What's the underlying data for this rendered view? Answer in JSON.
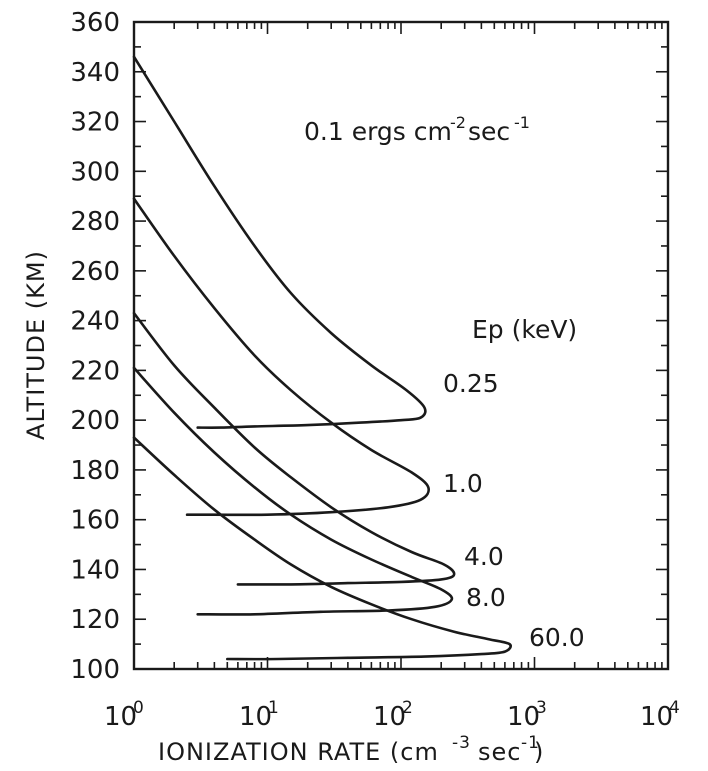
{
  "chart_data": {
    "type": "line",
    "annotation": "0.1 ergs cm-2 sec-1",
    "legend_title": "Ep (keV)",
    "xlabel": "IONIZATION RATE (cm-3 sec-1)",
    "ylabel": "ALTITUDE (KM)",
    "x_scale": "log",
    "xlim": [
      1,
      10000
    ],
    "ylim": [
      100,
      360
    ],
    "x_ticks": [
      "10^0",
      "10^1",
      "10^2",
      "10^3",
      "10^4"
    ],
    "y_ticks": [
      "100",
      "120",
      "140",
      "160",
      "180",
      "200",
      "220",
      "240",
      "260",
      "280",
      "300",
      "320",
      "340",
      "360"
    ],
    "series": [
      {
        "name": "0.25",
        "x": [
          1.0,
          2.0,
          4.0,
          8.0,
          15.0,
          30.0,
          60.0,
          110.0,
          150.0,
          140.0,
          100.0,
          50.0,
          20.0,
          8.0,
          4.5,
          3.0
        ],
        "y": [
          346,
          320,
          294,
          270,
          251,
          235,
          222,
          212,
          205,
          201,
          200,
          199,
          198,
          197.5,
          197,
          197
        ]
      },
      {
        "name": "1.0",
        "x": [
          1.0,
          2.0,
          4.0,
          8.0,
          15.0,
          30.0,
          60.0,
          120.0,
          160.0,
          140.0,
          80.0,
          30.0,
          10.0,
          4.0,
          2.5
        ],
        "y": [
          289,
          266,
          245,
          226,
          212,
          199,
          188,
          179,
          173,
          168,
          165,
          163,
          162,
          162,
          162
        ]
      },
      {
        "name": "4.0",
        "x": [
          1.0,
          2.0,
          4.0,
          8.0,
          15.0,
          30.0,
          60.0,
          120.0,
          210.0,
          250.0,
          200.0,
          100.0,
          40.0,
          15.0,
          6.0
        ],
        "y": [
          243,
          222,
          205,
          189,
          177,
          165,
          155,
          147,
          142,
          138,
          136,
          135,
          134.5,
          134,
          134
        ]
      },
      {
        "name": "8.0",
        "x": [
          1.0,
          2.0,
          4.0,
          8.0,
          15.0,
          30.0,
          60.0,
          120.0,
          200.0,
          240.0,
          180.0,
          80.0,
          25.0,
          8.0,
          3.0
        ],
        "y": [
          221,
          203,
          187,
          173,
          162,
          152,
          144,
          137,
          132,
          128,
          125,
          123.5,
          123,
          122,
          122
        ]
      },
      {
        "name": "60.0",
        "x": [
          1.0,
          2.0,
          4.0,
          8.0,
          15.0,
          30.0,
          60.0,
          120.0,
          250.0,
          450.0,
          650.0,
          600.0,
          400.0,
          150.0,
          40.0,
          12.0,
          5.0
        ],
        "y": [
          193,
          178,
          164,
          152,
          142,
          133,
          126,
          120,
          115,
          112,
          110,
          107,
          106,
          105,
          104.5,
          104,
          104
        ]
      }
    ]
  }
}
